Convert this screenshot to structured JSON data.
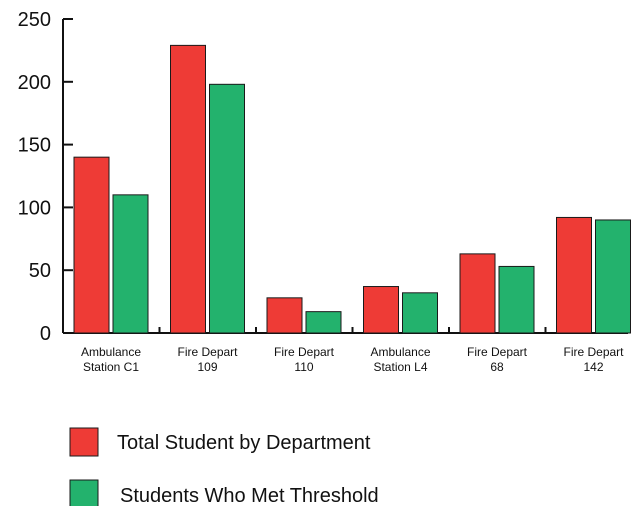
{
  "chart_data": {
    "type": "bar",
    "title": "",
    "xlabel": "",
    "ylabel": "",
    "categories": [
      [
        "Ambulance",
        "Station C1"
      ],
      [
        "Fire Depart",
        "109"
      ],
      [
        "Fire Depart",
        "110"
      ],
      [
        "Ambulance",
        "Station L4"
      ],
      [
        "Fire Depart",
        "68"
      ],
      [
        "Fire Depart",
        "142"
      ]
    ],
    "series": [
      {
        "name": "Total Student by Department",
        "color": "#ee3b36",
        "values": [
          140,
          229,
          28,
          37,
          63,
          92
        ]
      },
      {
        "name": "Students Who Met Threshold",
        "color": "#23b26d",
        "values": [
          110,
          198,
          17,
          32,
          53,
          90
        ]
      }
    ],
    "ylim": [
      0,
      250
    ],
    "yticks": [
      0,
      50,
      100,
      150,
      200,
      250
    ],
    "grid": false,
    "legend_position": "bottom-left"
  }
}
